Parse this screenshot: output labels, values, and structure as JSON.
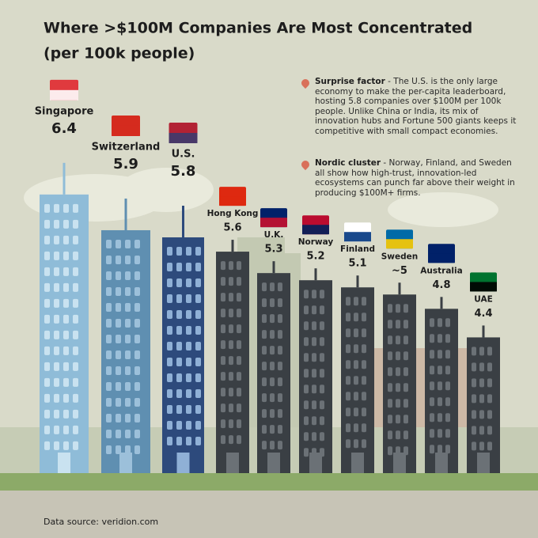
{
  "chart_data": {
    "type": "bar",
    "title": "Where >$100M Companies Are Most Concentrated",
    "subtitle": "(per 100k people)",
    "categories": [
      "Singapore",
      "Switzerland",
      "U.S.",
      "Hong Kong",
      "U.K.",
      "Norway",
      "Finland",
      "Sweden",
      "Australia",
      "UAE"
    ],
    "values": [
      6.4,
      5.9,
      5.8,
      5.6,
      5.3,
      5.2,
      5.1,
      5,
      4.8,
      4.4
    ],
    "value_labels": [
      "6.4",
      "5.9",
      "5.8",
      "5.6",
      "5.3",
      "5.2",
      "5.1",
      "~5",
      "4.8",
      "4.4"
    ],
    "annotations": [
      {
        "title": "Surprise factor",
        "text": "- The U.S. is the only large economy to make the per-capita leaderboard, hosting 5.8 companies over $100M per 100k people. Unlike China or India, its mix of innovation hubs and Fortune 500 giants keeps it competitive with small compact economies."
      },
      {
        "title": "Nordic cluster",
        "text": "- Norway, Finland, and Sweden all show how high-trust, innovation-led ecosystems can punch far above their weight in producing $100M+ firms."
      }
    ],
    "source": "Data source: veridion.com"
  }
}
